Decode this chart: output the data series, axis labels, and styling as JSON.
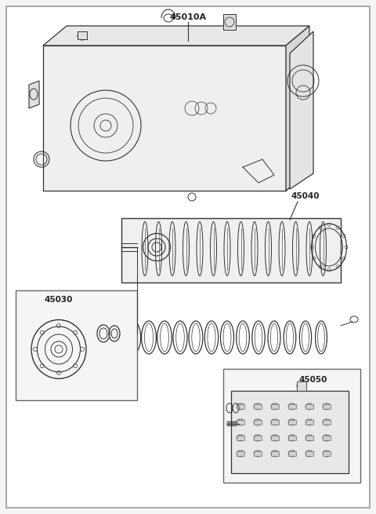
{
  "title": "45010A",
  "bg_color": "#f5f5f5",
  "border_color": "#cccccc",
  "line_color": "#333333",
  "label_45010A": "45010A",
  "label_45040": "45040",
  "label_45030": "45030",
  "label_45050": "45050",
  "fig_width": 4.8,
  "fig_height": 6.55,
  "dpi": 100
}
